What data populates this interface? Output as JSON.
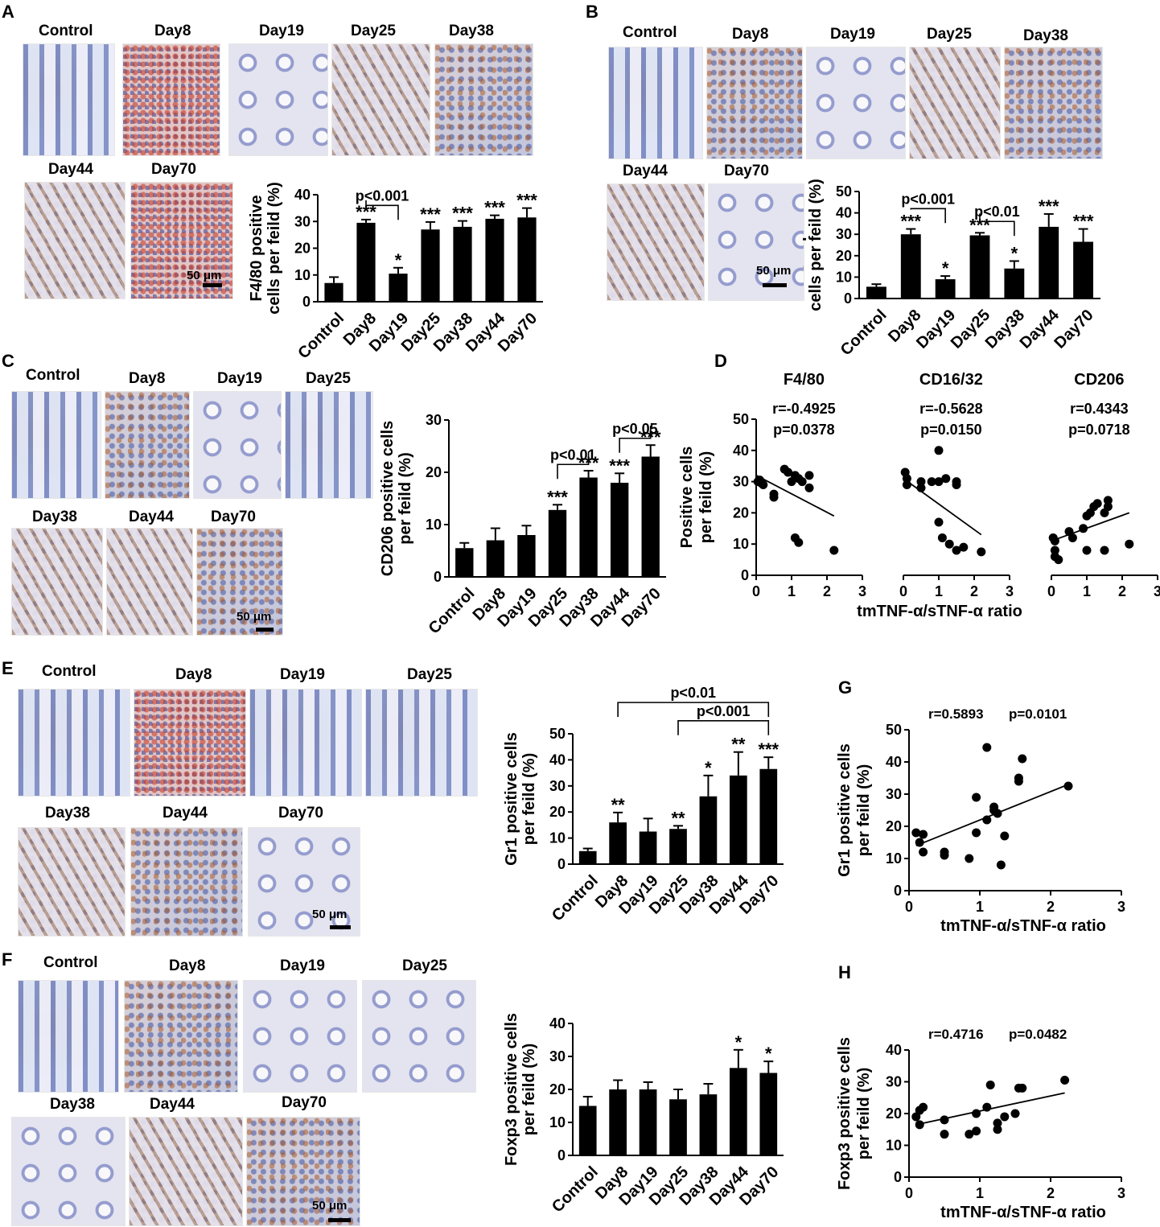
{
  "panels": {
    "A": {
      "letter": "A",
      "images": [
        "Control",
        "Day8",
        "Day19",
        "Day25",
        "Day38",
        "Day44",
        "Day70"
      ],
      "scale": "50 μm",
      "chart": {
        "ylabel1": "F4/80 positive",
        "ylabel2": "cells per feild (%)",
        "ticks": [
          "0",
          "10",
          "20",
          "30",
          "40"
        ],
        "ymax": 40,
        "categories": [
          "Control",
          "Day8",
          "Day19",
          "Day25",
          "Day38",
          "Day44",
          "Day70"
        ],
        "values": [
          7,
          29.5,
          10.5,
          27,
          28,
          31,
          31.5
        ],
        "errors": [
          2.2,
          1.2,
          2.2,
          2.8,
          2.2,
          1.3,
          3.5
        ],
        "stars": [
          "",
          "***",
          "*",
          "***",
          "***",
          "***",
          "***"
        ],
        "brackets": [
          {
            "from": 1,
            "to": 2,
            "label": "p<0.001",
            "level": 36
          }
        ]
      }
    },
    "B": {
      "letter": "B",
      "images": [
        "Control",
        "Day8",
        "Day19",
        "Day25",
        "Day38",
        "Day44",
        "Day70"
      ],
      "scale": "50 μm",
      "chart": {
        "ylabel1": "CD16/32 positive",
        "ylabel2": "cells per feild (%)",
        "ticks": [
          "0",
          "10",
          "20",
          "30",
          "40",
          "50"
        ],
        "ymax": 50,
        "categories": [
          "Control",
          "Day8",
          "Day19",
          "Day25",
          "Day38",
          "Day44",
          "Day70"
        ],
        "values": [
          5.5,
          30,
          9,
          29.5,
          14,
          33.5,
          26.5
        ],
        "errors": [
          1.2,
          2.5,
          1.5,
          1.2,
          3.5,
          6,
          6
        ],
        "stars": [
          "",
          "***",
          "*",
          "***",
          "*",
          "***",
          "***"
        ],
        "brackets": [
          {
            "from": 1,
            "to": 2,
            "label": "p<0.001",
            "level": 42
          },
          {
            "from": 3,
            "to": 4,
            "label": "p<0.01",
            "level": 36
          }
        ]
      }
    },
    "C": {
      "letter": "C",
      "images": [
        "Control",
        "Day8",
        "Day19",
        "Day25",
        "Day38",
        "Day44",
        "Day70"
      ],
      "scale": "50 μm",
      "chart": {
        "ylabel1": "CD206 positive cells",
        "ylabel2": "per feild (%)",
        "ticks": [
          "0",
          "10",
          "20",
          "30"
        ],
        "ymax": 30,
        "categories": [
          "Control",
          "Day8",
          "Day19",
          "Day25",
          "Day38",
          "Day44",
          "Day70"
        ],
        "values": [
          5.5,
          7,
          8,
          12.8,
          19,
          18,
          23
        ],
        "errors": [
          1,
          2.3,
          1.8,
          1,
          1.3,
          1.8,
          2.2
        ],
        "stars": [
          "",
          "",
          "",
          "***",
          "***",
          "***",
          "***"
        ],
        "brackets": [
          {
            "from": 3,
            "to": 4,
            "label": "p<0.01",
            "level": 21.5
          },
          {
            "from": 5,
            "to": 6,
            "label": "p<0.05",
            "level": 26.5
          }
        ]
      }
    },
    "D": {
      "letter": "D",
      "ylabel1": "Positive cells",
      "ylabel2": "per feild (%)",
      "xlabel": "tmTNF-α/sTNF-α ratio",
      "ticks_y": [
        "0",
        "10",
        "20",
        "30",
        "40",
        "50"
      ],
      "ticks_x": [
        "0",
        "1",
        "2",
        "3"
      ],
      "subplots": [
        {
          "title": "F4/80",
          "r": "r=-0.4925",
          "p": "p=0.0378",
          "points": [
            [
              0.05,
              30
            ],
            [
              0.1,
              30.5
            ],
            [
              0.15,
              29.5
            ],
            [
              0.2,
              29
            ],
            [
              0.5,
              26
            ],
            [
              0.5,
              25
            ],
            [
              0.8,
              34
            ],
            [
              0.9,
              33
            ],
            [
              1.0,
              30
            ],
            [
              1.1,
              32
            ],
            [
              1.2,
              31
            ],
            [
              1.3,
              30
            ],
            [
              1.5,
              32
            ],
            [
              1.5,
              28
            ],
            [
              1.1,
              12
            ],
            [
              1.2,
              10.5
            ],
            [
              2.2,
              8
            ]
          ],
          "line": [
            [
              0,
              32
            ],
            [
              2.2,
              19
            ]
          ]
        },
        {
          "title": "CD16/32",
          "r": "r=-0.5628",
          "p": "p=0.0150",
          "points": [
            [
              0.05,
              33
            ],
            [
              0.1,
              31
            ],
            [
              0.1,
              29
            ],
            [
              0.5,
              30
            ],
            [
              0.5,
              28
            ],
            [
              0.8,
              30
            ],
            [
              1.0,
              30
            ],
            [
              1.0,
              40
            ],
            [
              1.2,
              31
            ],
            [
              1.5,
              30
            ],
            [
              1.5,
              29
            ],
            [
              1.0,
              17
            ],
            [
              1.1,
              12
            ],
            [
              1.3,
              10
            ],
            [
              1.5,
              8
            ],
            [
              1.7,
              9
            ],
            [
              2.2,
              7.5
            ]
          ],
          "line": [
            [
              0,
              31
            ],
            [
              2.2,
              13
            ]
          ]
        },
        {
          "title": "CD206",
          "r": "r=0.4343",
          "p": "p=0.0718",
          "points": [
            [
              0.05,
              12
            ],
            [
              0.1,
              11
            ],
            [
              0.1,
              8
            ],
            [
              0.1,
              6
            ],
            [
              0.2,
              5
            ],
            [
              0.5,
              14
            ],
            [
              0.6,
              12
            ],
            [
              0.9,
              15
            ],
            [
              1.0,
              19
            ],
            [
              1.1,
              20
            ],
            [
              1.2,
              22
            ],
            [
              1.3,
              23
            ],
            [
              1.5,
              20
            ],
            [
              1.6,
              22
            ],
            [
              1.6,
              24
            ],
            [
              1.0,
              8
            ],
            [
              1.5,
              8
            ],
            [
              2.2,
              10
            ]
          ],
          "line": [
            [
              0,
              11
            ],
            [
              2.2,
              20
            ]
          ]
        }
      ]
    },
    "E": {
      "letter": "E",
      "images": [
        "Control",
        "Day8",
        "Day19",
        "Day25",
        "Day38",
        "Day44",
        "Day70"
      ],
      "scale": "50 μm",
      "chart": {
        "ylabel1": "Gr1 positive cells",
        "ylabel2": "per feild (%)",
        "ticks": [
          "0",
          "10",
          "20",
          "30",
          "40",
          "50"
        ],
        "ymax": 50,
        "categories": [
          "Control",
          "Day8",
          "Day19",
          "Day25",
          "Day38",
          "Day44",
          "Day70"
        ],
        "values": [
          5,
          16,
          12.5,
          13.5,
          26,
          34,
          36.5
        ],
        "errors": [
          1,
          3.8,
          5,
          1.2,
          8,
          9,
          4.5
        ],
        "stars": [
          "",
          "**",
          "",
          "**",
          "*",
          "**",
          "***"
        ],
        "brackets": [
          {
            "from": 1,
            "to": 6,
            "label": "p<0.01",
            "level": 62
          },
          {
            "from": 3,
            "to": 6,
            "label": "p<0.001",
            "level": 55
          }
        ]
      }
    },
    "F": {
      "letter": "F",
      "images": [
        "Control",
        "Day8",
        "Day19",
        "Day25",
        "Day38",
        "Day44",
        "Day70"
      ],
      "scale": "50 μm",
      "chart": {
        "ylabel1": "Foxp3 positive cells",
        "ylabel2": "per feild (%)",
        "ticks": [
          "0",
          "10",
          "20",
          "30",
          "40"
        ],
        "ymax": 40,
        "categories": [
          "Control",
          "Day8",
          "Day19",
          "Day25",
          "Day38",
          "Day44",
          "Day70"
        ],
        "values": [
          15,
          20,
          20,
          17,
          18.5,
          26.5,
          25
        ],
        "errors": [
          2.8,
          2.8,
          2.2,
          3,
          3.2,
          5.5,
          3.5
        ],
        "stars": [
          "",
          "",
          "",
          "",
          "",
          "*",
          "*"
        ],
        "brackets": []
      }
    },
    "G": {
      "letter": "G",
      "ylabel1": "Gr1 positive cells",
      "ylabel2": "per feild (%)",
      "xlabel": "tmTNF-α/sTNF-α ratio",
      "ticks_y": [
        "0",
        "10",
        "20",
        "30",
        "40",
        "50"
      ],
      "ticks_x": [
        "0",
        "1",
        "2",
        "3"
      ],
      "r": "r=0.5893",
      "p": "p=0.0101",
      "points": [
        [
          0.1,
          18
        ],
        [
          0.15,
          15
        ],
        [
          0.2,
          12
        ],
        [
          0.2,
          17.5
        ],
        [
          0.5,
          12
        ],
        [
          0.5,
          11
        ],
        [
          0.85,
          10
        ],
        [
          0.95,
          29
        ],
        [
          0.95,
          18
        ],
        [
          1.1,
          22
        ],
        [
          1.1,
          44.5
        ],
        [
          1.2,
          25
        ],
        [
          1.2,
          26
        ],
        [
          1.25,
          24
        ],
        [
          1.3,
          8
        ],
        [
          1.35,
          17
        ],
        [
          1.55,
          35
        ],
        [
          1.55,
          34
        ],
        [
          1.6,
          41
        ],
        [
          2.25,
          32.5
        ]
      ],
      "line": [
        [
          0.1,
          14
        ],
        [
          2.25,
          33
        ]
      ]
    },
    "H": {
      "letter": "H",
      "ylabel1": "Foxp3 positive cells",
      "ylabel2": "per feild (%)",
      "xlabel": "tmTNF-α/sTNF-α ratio",
      "ticks_y": [
        "0",
        "10",
        "20",
        "30",
        "40"
      ],
      "ticks_x": [
        "0",
        "1",
        "2",
        "3"
      ],
      "r": "r=0.4716",
      "p": "p=0.0482",
      "points": [
        [
          0.1,
          19
        ],
        [
          0.15,
          21
        ],
        [
          0.2,
          22
        ],
        [
          0.15,
          16.5
        ],
        [
          0.5,
          18
        ],
        [
          0.5,
          13.5
        ],
        [
          0.85,
          13.5
        ],
        [
          0.95,
          20
        ],
        [
          0.95,
          14.5
        ],
        [
          1.1,
          22
        ],
        [
          1.15,
          29
        ],
        [
          1.25,
          17
        ],
        [
          1.25,
          15
        ],
        [
          1.35,
          19
        ],
        [
          1.5,
          20
        ],
        [
          1.55,
          28
        ],
        [
          1.6,
          28
        ],
        [
          2.2,
          30.5
        ]
      ],
      "line": [
        [
          0.1,
          16.5
        ],
        [
          2.2,
          26.5
        ]
      ]
    }
  }
}
